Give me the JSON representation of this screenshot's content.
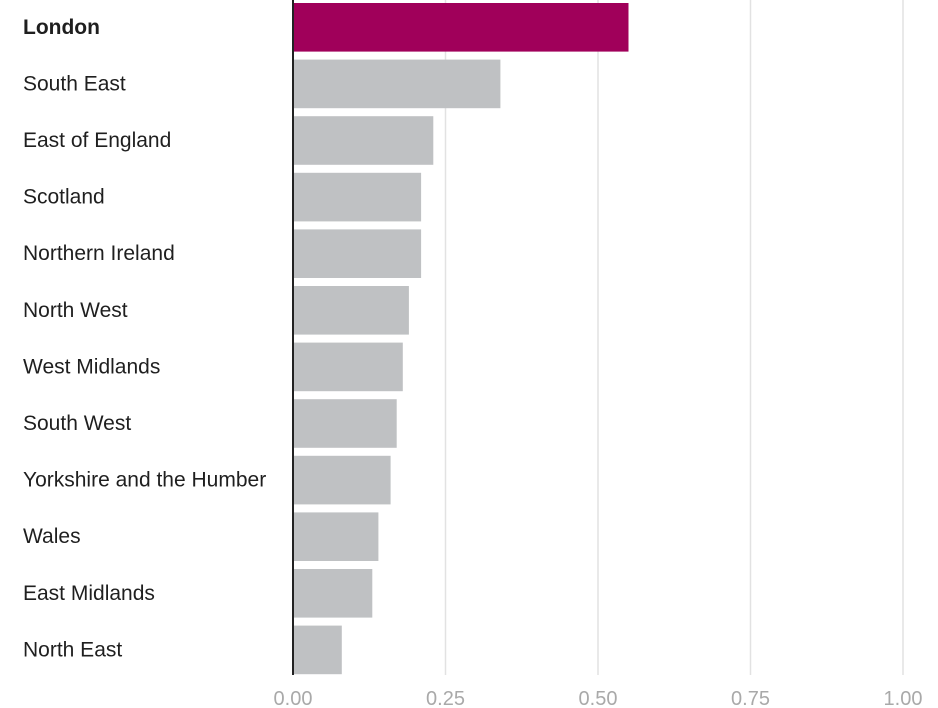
{
  "chart_data": {
    "type": "bar",
    "orientation": "horizontal",
    "categories": [
      "London",
      "South East",
      "East of England",
      "Scotland",
      "Northern Ireland",
      "North West",
      "West Midlands",
      "South West",
      "Yorkshire and the Humber",
      "Wales",
      "East Midlands",
      "North East"
    ],
    "values": [
      0.55,
      0.34,
      0.23,
      0.21,
      0.21,
      0.19,
      0.18,
      0.17,
      0.16,
      0.14,
      0.13,
      0.08
    ],
    "highlight": "London",
    "title": "",
    "xlabel": "",
    "ylabel": "",
    "xlim": [
      0,
      1
    ],
    "x_ticks": [
      0,
      0.25,
      0.5,
      0.75,
      1
    ],
    "x_tick_labels": [
      "0.00",
      "0.25",
      "0.50",
      "0.75",
      "1.00"
    ],
    "grid": true,
    "colors": {
      "highlight": "#a0005a",
      "default": "#bfc1c3"
    }
  }
}
